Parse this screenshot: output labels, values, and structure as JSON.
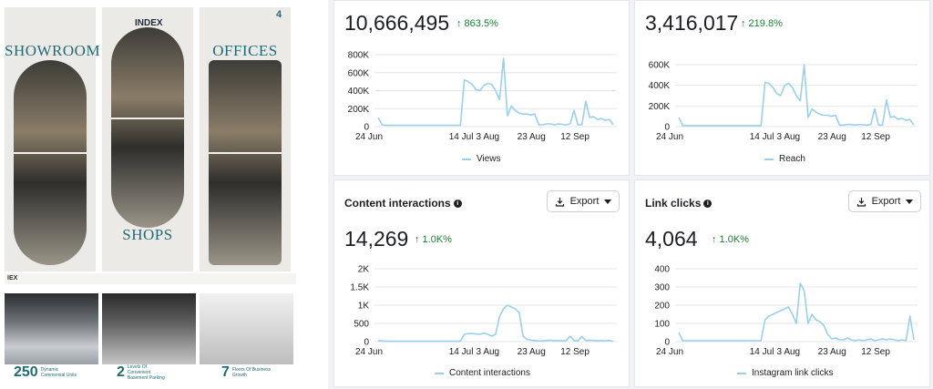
{
  "posters": {
    "poster_a": {
      "title": "SHOWROOM"
    },
    "poster_b": {
      "logo": "INDEX",
      "title": "SHOPS"
    },
    "poster_c": {
      "title": "OFFICES",
      "badge": "4"
    },
    "band_label": "IEX",
    "stats": [
      {
        "value": "250",
        "label": "Dynamic Commercial Units"
      },
      {
        "value": "2",
        "label": "Levels Of Convenient Basement Parking"
      },
      {
        "value": "7",
        "label": "Floors Of Business Growth"
      }
    ]
  },
  "colors": {
    "line": "#9ad0ea",
    "grid": "#e4e6eb",
    "positive": "#1e7e34",
    "brand": "#1f6b76"
  },
  "icons": {
    "info": "info-icon",
    "export": "download-icon",
    "caret": "caret-down-icon"
  },
  "cards": {
    "views": {
      "total": "10,666,495",
      "trend": "↑ 863.5%"
    },
    "reach": {
      "total": "3,416,017",
      "trend": "↑ 219.8%"
    },
    "content_interactions": {
      "title": "Content interactions",
      "total": "14,269",
      "trend": "↑ 1.0K%",
      "export_label": "Export"
    },
    "link_clicks": {
      "title": "Link clicks",
      "total": "4,064",
      "trend": "↑ 1.0K%",
      "export_label": "Export"
    }
  },
  "chart_data": [
    {
      "type": "line",
      "id": "views",
      "title": "",
      "xlabel": "",
      "ylabel": "",
      "x_ticks": [
        "24 Jun",
        "14 Jul",
        "3 Aug",
        "23 Aug",
        "12 Sep"
      ],
      "y_ticks": [
        "0",
        "200K",
        "400K",
        "600K",
        "800K"
      ],
      "ylim": [
        0,
        800000
      ],
      "legend": "Views",
      "values": [
        100000,
        20000,
        15000,
        15000,
        15000,
        15000,
        15000,
        15000,
        15000,
        15000,
        15000,
        15000,
        15000,
        15000,
        15000,
        15000,
        15000,
        15000,
        15000,
        15000,
        15000,
        15000,
        520000,
        500000,
        470000,
        410000,
        400000,
        460000,
        480000,
        470000,
        400000,
        300000,
        760000,
        120000,
        230000,
        180000,
        150000,
        140000,
        140000,
        130000,
        140000,
        20000,
        20000,
        30000,
        30000,
        20000,
        30000,
        25000,
        20000,
        30000,
        180000,
        20000,
        20000,
        280000,
        100000,
        110000,
        80000,
        90000,
        70000,
        80000,
        20000
      ]
    },
    {
      "type": "line",
      "id": "reach",
      "title": "",
      "xlabel": "",
      "ylabel": "",
      "x_ticks": [
        "24 Jun",
        "14 Jul",
        "3 Aug",
        "23 Aug",
        "12 Sep"
      ],
      "y_ticks": [
        "0",
        "200K",
        "400K",
        "600K"
      ],
      "ylim": [
        0,
        600000
      ],
      "legend": "Reach",
      "values": [
        90000,
        10000,
        10000,
        10000,
        10000,
        10000,
        10000,
        10000,
        10000,
        10000,
        10000,
        10000,
        10000,
        10000,
        10000,
        10000,
        10000,
        10000,
        10000,
        10000,
        10000,
        10000,
        430000,
        420000,
        380000,
        320000,
        300000,
        400000,
        420000,
        380000,
        300000,
        250000,
        600000,
        90000,
        170000,
        140000,
        120000,
        110000,
        110000,
        100000,
        110000,
        15000,
        15000,
        20000,
        20000,
        15000,
        20000,
        18000,
        15000,
        20000,
        170000,
        15000,
        15000,
        260000,
        90000,
        100000,
        70000,
        80000,
        60000,
        70000,
        15000
      ]
    },
    {
      "type": "line",
      "id": "content_interactions",
      "title": "",
      "xlabel": "",
      "ylabel": "",
      "x_ticks": [
        "24 Jun",
        "14 Jul",
        "3 Aug",
        "23 Aug",
        "12 Sep"
      ],
      "y_ticks": [
        "0",
        "500",
        "1K",
        "1.5K",
        "2K"
      ],
      "ylim": [
        0,
        2000
      ],
      "legend": "Content interactions",
      "values": [
        30,
        20,
        10,
        10,
        10,
        10,
        10,
        10,
        10,
        10,
        10,
        10,
        10,
        10,
        10,
        10,
        10,
        10,
        10,
        10,
        10,
        10,
        200,
        220,
        220,
        210,
        200,
        230,
        200,
        150,
        200,
        700,
        900,
        1000,
        950,
        900,
        800,
        150,
        60,
        40,
        30,
        20,
        20,
        30,
        40,
        20,
        30,
        20,
        30,
        150,
        30,
        20,
        140,
        30,
        40,
        30,
        20,
        30,
        20,
        30,
        10
      ]
    },
    {
      "type": "line",
      "id": "link_clicks",
      "title": "",
      "xlabel": "",
      "ylabel": "",
      "x_ticks": [
        "24 Jun",
        "14 Jul",
        "3 Aug",
        "23 Aug",
        "12 Sep"
      ],
      "y_ticks": [
        "0",
        "100",
        "200",
        "300",
        "400"
      ],
      "ylim": [
        0,
        400
      ],
      "legend": "Instagram link clicks",
      "values": [
        50,
        5,
        5,
        5,
        5,
        5,
        5,
        5,
        5,
        5,
        5,
        5,
        5,
        5,
        5,
        5,
        5,
        5,
        5,
        5,
        5,
        5,
        120,
        140,
        150,
        160,
        170,
        180,
        190,
        150,
        100,
        320,
        280,
        100,
        150,
        120,
        110,
        90,
        40,
        15,
        20,
        10,
        10,
        20,
        10,
        5,
        10,
        5,
        10,
        15,
        5,
        10,
        15,
        10,
        15,
        10,
        5,
        10,
        5,
        140,
        10
      ]
    }
  ]
}
